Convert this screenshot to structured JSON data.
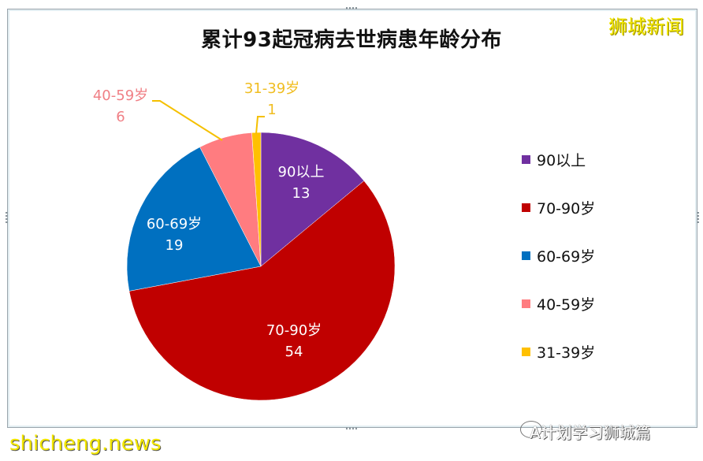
{
  "chart_data": {
    "type": "pie",
    "title": "累计93起冠病去世病患年龄分布",
    "categories": [
      "90以上",
      "70-90岁",
      "60-69岁",
      "40-59岁",
      "31-39岁"
    ],
    "values": [
      13,
      54,
      19,
      6,
      1
    ],
    "total": 93,
    "colors": [
      "#7030a0",
      "#c00000",
      "#0070c0",
      "#ff7c80",
      "#ffc000"
    ],
    "legend_position": "right",
    "data_labels": [
      {
        "category": "90以上",
        "value": "13",
        "color": "#ffffff",
        "placement": "inside"
      },
      {
        "category": "70-90岁",
        "value": "54",
        "color": "#ffffff",
        "placement": "inside"
      },
      {
        "category": "60-69岁",
        "value": "19",
        "color": "#ffffff",
        "placement": "inside"
      },
      {
        "category": "40-59岁",
        "value": "6",
        "color": "#f08080",
        "placement": "outside-leader"
      },
      {
        "category": "31-39岁",
        "value": "1",
        "color": "#f0c020",
        "placement": "outside-leader"
      }
    ]
  },
  "watermarks": {
    "top_right": "狮城新闻",
    "bottom_left": "shicheng.news",
    "bottom_right": "A计划学习狮城篇"
  }
}
